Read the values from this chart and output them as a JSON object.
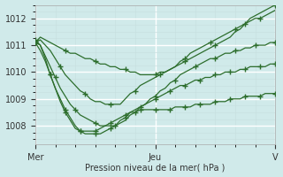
{
  "xlabel": "Pression niveau de la mer( hPa )",
  "bg_color": "#d0eaea",
  "grid_color_major": "#b8d8d8",
  "grid_color_minor": "#c8e4e4",
  "line_color": "#2d6e2d",
  "ylim": [
    1007.3,
    1012.5
  ],
  "xlim": [
    0,
    96
  ],
  "yticks": [
    1008,
    1009,
    1010,
    1011,
    1012
  ],
  "xtick_positions": [
    0,
    48,
    96
  ],
  "xtick_labels": [
    "Mer",
    "Jeu",
    "V"
  ],
  "series": [
    {
      "x": [
        0,
        2,
        4,
        6,
        8,
        10,
        12,
        14,
        16,
        18,
        20,
        22,
        24,
        26,
        28,
        30,
        32,
        34,
        36,
        38,
        40,
        42,
        44,
        46,
        48,
        50,
        52,
        54,
        56,
        58,
        60,
        62,
        64,
        66,
        68,
        70,
        72,
        74,
        76,
        78,
        80,
        82,
        84,
        86,
        88,
        90,
        92,
        94,
        96
      ],
      "y": [
        1011.1,
        1011.3,
        1011.2,
        1011.1,
        1011.0,
        1010.9,
        1010.8,
        1010.7,
        1010.7,
        1010.6,
        1010.5,
        1010.5,
        1010.4,
        1010.3,
        1010.3,
        1010.2,
        1010.2,
        1010.1,
        1010.1,
        1010.0,
        1010.0,
        1009.9,
        1009.9,
        1009.9,
        1009.9,
        1010.0,
        1010.0,
        1010.1,
        1010.2,
        1010.3,
        1010.4,
        1010.5,
        1010.6,
        1010.7,
        1010.8,
        1010.9,
        1011.0,
        1011.1,
        1011.2,
        1011.3,
        1011.5,
        1011.6,
        1011.8,
        1012.0,
        1012.1,
        1012.2,
        1012.3,
        1012.4,
        1012.5
      ],
      "mark_every": 6
    },
    {
      "x": [
        0,
        2,
        4,
        6,
        8,
        10,
        12,
        14,
        16,
        18,
        20,
        22,
        24,
        26,
        28,
        30,
        32,
        34,
        36,
        38,
        40,
        42,
        44,
        46,
        48,
        50,
        52,
        54,
        56,
        58,
        60,
        62,
        64,
        66,
        68,
        70,
        72,
        74,
        76,
        78,
        80,
        82,
        84,
        86,
        88,
        90,
        92,
        94,
        96
      ],
      "y": [
        1011.1,
        1011.2,
        1011.0,
        1010.8,
        1010.5,
        1010.2,
        1009.9,
        1009.7,
        1009.5,
        1009.3,
        1009.2,
        1009.0,
        1008.9,
        1008.9,
        1008.8,
        1008.8,
        1008.8,
        1008.8,
        1009.0,
        1009.2,
        1009.3,
        1009.5,
        1009.6,
        1009.7,
        1009.8,
        1009.9,
        1010.0,
        1010.1,
        1010.2,
        1010.4,
        1010.5,
        1010.7,
        1010.8,
        1010.9,
        1011.0,
        1011.1,
        1011.2,
        1011.3,
        1011.4,
        1011.5,
        1011.6,
        1011.7,
        1011.8,
        1011.9,
        1012.0,
        1012.0,
        1012.1,
        1012.2,
        1012.3
      ],
      "mark_every": 5
    },
    {
      "x": [
        0,
        2,
        4,
        6,
        8,
        10,
        12,
        14,
        16,
        18,
        20,
        22,
        24,
        26,
        28,
        30,
        32,
        34,
        36,
        38,
        40,
        42,
        44,
        46,
        48,
        50,
        52,
        54,
        56,
        58,
        60,
        62,
        64,
        66,
        68,
        70,
        72,
        74,
        76,
        78,
        80,
        82,
        84,
        86,
        88,
        90,
        92,
        94,
        96
      ],
      "y": [
        1011.1,
        1011.0,
        1010.6,
        1010.2,
        1009.8,
        1009.4,
        1009.1,
        1008.8,
        1008.6,
        1008.4,
        1008.3,
        1008.2,
        1008.1,
        1008.0,
        1008.0,
        1008.0,
        1008.0,
        1008.1,
        1008.2,
        1008.4,
        1008.5,
        1008.7,
        1008.8,
        1009.0,
        1009.1,
        1009.3,
        1009.4,
        1009.6,
        1009.7,
        1009.9,
        1010.0,
        1010.1,
        1010.2,
        1010.3,
        1010.4,
        1010.5,
        1010.5,
        1010.6,
        1010.7,
        1010.7,
        1010.8,
        1010.8,
        1010.9,
        1010.9,
        1011.0,
        1011.0,
        1011.0,
        1011.1,
        1011.1
      ],
      "mark_every": 4
    },
    {
      "x": [
        0,
        2,
        4,
        6,
        8,
        10,
        12,
        14,
        16,
        18,
        20,
        22,
        24,
        26,
        28,
        30,
        32,
        34,
        36,
        38,
        40,
        42,
        44,
        46,
        48,
        50,
        52,
        54,
        56,
        58,
        60,
        62,
        64,
        66,
        68,
        70,
        72,
        74,
        76,
        78,
        80,
        82,
        84,
        86,
        88,
        90,
        92,
        94,
        96
      ],
      "y": [
        1011.1,
        1010.8,
        1010.4,
        1009.9,
        1009.4,
        1009.0,
        1008.6,
        1008.3,
        1008.0,
        1007.8,
        1007.7,
        1007.7,
        1007.7,
        1007.7,
        1007.8,
        1007.9,
        1008.0,
        1008.2,
        1008.3,
        1008.5,
        1008.6,
        1008.7,
        1008.8,
        1008.9,
        1009.0,
        1009.1,
        1009.2,
        1009.3,
        1009.4,
        1009.5,
        1009.5,
        1009.6,
        1009.7,
        1009.7,
        1009.8,
        1009.8,
        1009.9,
        1009.9,
        1010.0,
        1010.0,
        1010.0,
        1010.1,
        1010.1,
        1010.2,
        1010.2,
        1010.2,
        1010.2,
        1010.3,
        1010.3
      ],
      "mark_every": 3
    },
    {
      "x": [
        0,
        2,
        4,
        6,
        8,
        10,
        12,
        14,
        16,
        18,
        20,
        22,
        24,
        26,
        28,
        30,
        32,
        34,
        36,
        38,
        40,
        42,
        44,
        46,
        48,
        50,
        52,
        54,
        56,
        58,
        60,
        62,
        64,
        66,
        68,
        70,
        72,
        74,
        76,
        78,
        80,
        82,
        84,
        86,
        88,
        90,
        92,
        94,
        96
      ],
      "y": [
        1011.2,
        1011.0,
        1010.5,
        1009.9,
        1009.4,
        1008.9,
        1008.5,
        1008.2,
        1007.9,
        1007.8,
        1007.8,
        1007.8,
        1007.8,
        1007.9,
        1008.0,
        1008.1,
        1008.2,
        1008.3,
        1008.4,
        1008.5,
        1008.5,
        1008.6,
        1008.6,
        1008.6,
        1008.6,
        1008.6,
        1008.6,
        1008.6,
        1008.7,
        1008.7,
        1008.7,
        1008.7,
        1008.8,
        1008.8,
        1008.8,
        1008.8,
        1008.9,
        1008.9,
        1008.9,
        1009.0,
        1009.0,
        1009.0,
        1009.1,
        1009.1,
        1009.1,
        1009.1,
        1009.2,
        1009.2,
        1009.2
      ],
      "mark_every": 3
    }
  ]
}
